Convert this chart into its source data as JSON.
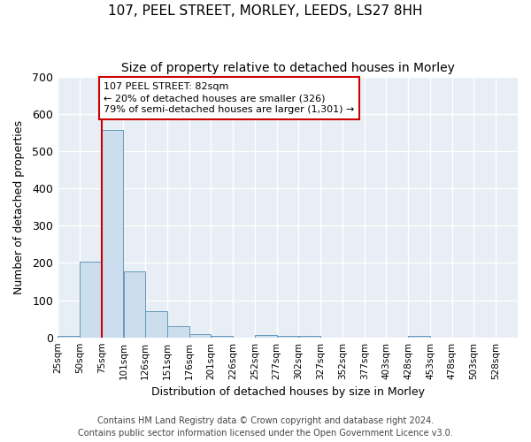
{
  "title1": "107, PEEL STREET, MORLEY, LEEDS, LS27 8HH",
  "title2": "Size of property relative to detached houses in Morley",
  "xlabel": "Distribution of detached houses by size in Morley",
  "ylabel": "Number of detached properties",
  "bar_color": "#ccdded",
  "bar_edge_color": "#6699bb",
  "bg_color": "#e8eef5",
  "grid_color": "#ffffff",
  "fig_bg_color": "#ffffff",
  "categories": [
    "25sqm",
    "50sqm",
    "75sqm",
    "101sqm",
    "126sqm",
    "151sqm",
    "176sqm",
    "201sqm",
    "226sqm",
    "252sqm",
    "277sqm",
    "302sqm",
    "327sqm",
    "352sqm",
    "377sqm",
    "403sqm",
    "428sqm",
    "453sqm",
    "478sqm",
    "503sqm",
    "528sqm"
  ],
  "values": [
    5,
    203,
    557,
    178,
    70,
    30,
    8,
    5,
    0,
    6,
    5,
    5,
    0,
    0,
    0,
    0,
    3,
    0,
    0,
    0,
    0
  ],
  "property_bin_index": 2,
  "annotation_text": "107 PEEL STREET: 82sqm\n← 20% of detached houses are smaller (326)\n79% of semi-detached houses are larger (1,301) →",
  "footer1": "Contains HM Land Registry data © Crown copyright and database right 2024.",
  "footer2": "Contains public sector information licensed under the Open Government Licence v3.0.",
  "ylim": [
    0,
    700
  ],
  "yticks": [
    0,
    100,
    200,
    300,
    400,
    500,
    600,
    700
  ],
  "annotation_box_color": "#cc0000",
  "vline_color": "#cc0000",
  "title1_fontsize": 11,
  "title2_fontsize": 10,
  "xlabel_fontsize": 9,
  "ylabel_fontsize": 9,
  "footer_fontsize": 7
}
